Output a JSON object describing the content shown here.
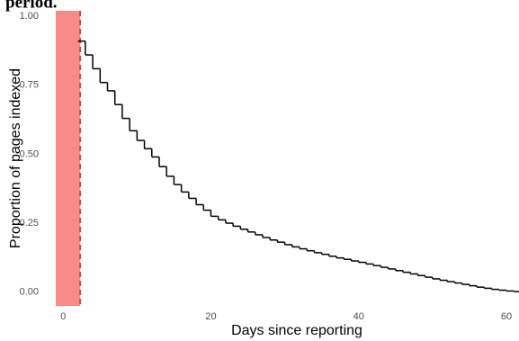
{
  "chart_data": {
    "type": "step",
    "title": "period.",
    "x_label": "Days since reporting",
    "y_label": "Proportion of pages indexed",
    "x": [
      2,
      3,
      4,
      5,
      6,
      7,
      8,
      9,
      10,
      11,
      12,
      13,
      14,
      15,
      16,
      17,
      18,
      19,
      20,
      21,
      22,
      23,
      24,
      25,
      26,
      27,
      28,
      29,
      30,
      31,
      32,
      33,
      34,
      35,
      36,
      37,
      38,
      39,
      40,
      41,
      42,
      43,
      44,
      45,
      46,
      47,
      48,
      49,
      50,
      51,
      52,
      53,
      54,
      55,
      56,
      57,
      58,
      59,
      60,
      61
    ],
    "values": [
      0.91,
      0.86,
      0.81,
      0.76,
      0.73,
      0.68,
      0.63,
      0.585,
      0.55,
      0.52,
      0.49,
      0.455,
      0.42,
      0.39,
      0.363,
      0.34,
      0.317,
      0.297,
      0.275,
      0.262,
      0.25,
      0.239,
      0.228,
      0.218,
      0.208,
      0.198,
      0.189,
      0.181,
      0.172,
      0.164,
      0.157,
      0.15,
      0.143,
      0.137,
      0.13,
      0.124,
      0.119,
      0.113,
      0.108,
      0.102,
      0.096,
      0.09,
      0.084,
      0.078,
      0.072,
      0.066,
      0.06,
      0.054,
      0.048,
      0.043,
      0.038,
      0.033,
      0.028,
      0.023,
      0.018,
      0.014,
      0.01,
      0.007,
      0.004,
      0.002
    ],
    "color": "#000000",
    "highlight_region": {
      "x": [
        -1,
        2.3
      ],
      "color": "#f88a8a"
    },
    "reference_line": {
      "x": 2.3,
      "color": "#e0403c"
    },
    "xlim": [
      -1,
      61.7
    ],
    "ylim": [
      -0.05,
      1.02
    ],
    "xticks": [
      0,
      20,
      40,
      60
    ],
    "yticks": [
      {
        "value": 0,
        "label": "0.00"
      },
      {
        "value": 0.25,
        "label": "0.25"
      },
      {
        "value": 0.5,
        "label": "0.50"
      },
      {
        "value": 0.75,
        "label": "0.75"
      },
      {
        "value": 1,
        "label": "1.00"
      }
    ]
  }
}
